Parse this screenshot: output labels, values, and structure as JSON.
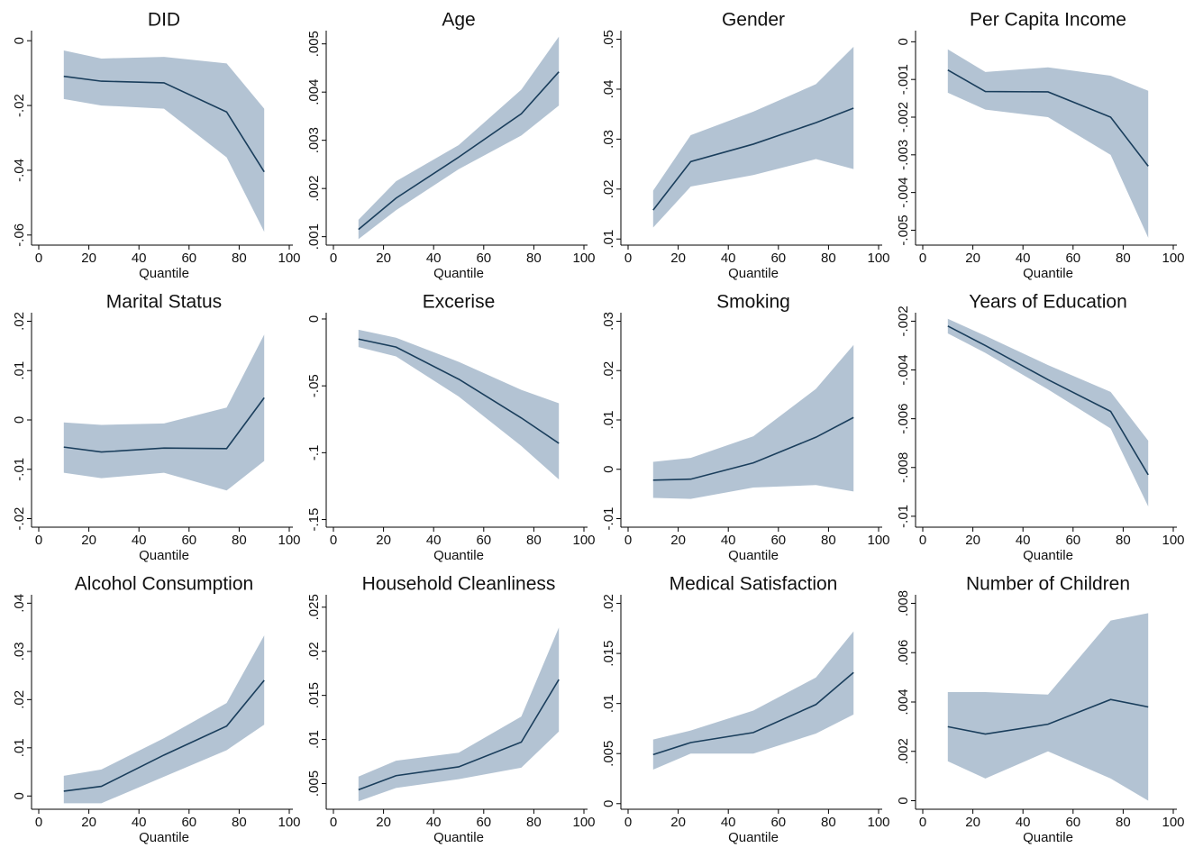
{
  "chart_data": [
    {
      "type": "line",
      "title": "DID",
      "x_label": "Quantile",
      "x": [
        10,
        25,
        50,
        75,
        90
      ],
      "values": [
        -0.011,
        -0.0125,
        -0.013,
        -0.022,
        -0.0405
      ],
      "lower": [
        -0.018,
        -0.02,
        -0.021,
        -0.036,
        -0.059
      ],
      "upper": [
        -0.003,
        -0.0055,
        -0.005,
        -0.007,
        -0.021
      ],
      "color": "#1a3e5c",
      "band_color": "#b3c3d3",
      "xlim": [
        0,
        100
      ],
      "xticks": [
        0,
        20,
        40,
        60,
        80,
        100
      ],
      "ylim": [
        -0.062,
        0.002
      ],
      "yticks": [
        {
          "value": -0.06,
          "label": "-.06"
        },
        {
          "value": -0.04,
          "label": "-.04"
        },
        {
          "value": -0.02,
          "label": "-.02"
        },
        0
      ]
    },
    {
      "type": "line",
      "title": "Age",
      "x_label": "Quantile",
      "x": [
        10,
        25,
        50,
        75,
        90
      ],
      "values": [
        0.00115,
        0.0018,
        0.00265,
        0.00355,
        0.00442
      ],
      "lower": [
        0.00095,
        0.00155,
        0.0024,
        0.0031,
        0.00372
      ],
      "upper": [
        0.00135,
        0.00215,
        0.0029,
        0.00405,
        0.00515
      ],
      "color": "#1a3e5c",
      "band_color": "#b3c3d3",
      "xlim": [
        0,
        100
      ],
      "xticks": [
        0,
        20,
        40,
        60,
        80,
        100
      ],
      "ylim": [
        0.0009,
        0.0052
      ],
      "yticks": [
        {
          "value": 0.001,
          "label": ".001"
        },
        {
          "value": 0.002,
          "label": ".002"
        },
        {
          "value": 0.003,
          "label": ".003"
        },
        {
          "value": 0.004,
          "label": ".004"
        },
        {
          "value": 0.005,
          "label": ".005"
        }
      ]
    },
    {
      "type": "line",
      "title": "Gender",
      "x_label": "Quantile",
      "x": [
        10,
        25,
        50,
        75,
        90
      ],
      "values": [
        0.0158,
        0.0255,
        0.029,
        0.0333,
        0.0362
      ],
      "lower": [
        0.0123,
        0.0205,
        0.0228,
        0.026,
        0.024
      ],
      "upper": [
        0.0197,
        0.0308,
        0.0355,
        0.041,
        0.0485
      ],
      "color": "#1a3e5c",
      "band_color": "#b3c3d3",
      "xlim": [
        0,
        100
      ],
      "xticks": [
        0,
        20,
        40,
        60,
        80,
        100
      ],
      "ylim": [
        0.0095,
        0.051
      ],
      "yticks": [
        {
          "value": 0.01,
          "label": ".01"
        },
        {
          "value": 0.02,
          "label": ".02"
        },
        {
          "value": 0.03,
          "label": ".03"
        },
        {
          "value": 0.04,
          "label": ".04"
        },
        {
          "value": 0.05,
          "label": ".05"
        }
      ]
    },
    {
      "type": "line",
      "title": "Per Capita Income",
      "x_label": "Quantile",
      "x": [
        10,
        25,
        50,
        75,
        90
      ],
      "values": [
        -0.00075,
        -0.00132,
        -0.00133,
        -0.002,
        -0.0033
      ],
      "lower": [
        -0.00135,
        -0.0018,
        -0.002,
        -0.003,
        -0.0052
      ],
      "upper": [
        -0.0002,
        -0.0008,
        -0.00068,
        -0.0009,
        -0.0013
      ],
      "color": "#1a3e5c",
      "band_color": "#b3c3d3",
      "xlim": [
        0,
        100
      ],
      "xticks": [
        0,
        20,
        40,
        60,
        80,
        100
      ],
      "ylim": [
        -0.0053,
        0.0002
      ],
      "yticks": [
        {
          "value": -0.005,
          "label": "-.005"
        },
        {
          "value": -0.004,
          "label": "-.004"
        },
        {
          "value": -0.003,
          "label": "-.003"
        },
        {
          "value": -0.002,
          "label": "-.002"
        },
        {
          "value": -0.001,
          "label": "-.001"
        },
        0
      ]
    },
    {
      "type": "line",
      "title": "Marital Status",
      "x_label": "Quantile",
      "x": [
        10,
        25,
        50,
        75,
        90
      ],
      "values": [
        -0.0055,
        -0.0065,
        -0.0057,
        -0.0058,
        0.0045
      ],
      "lower": [
        -0.0107,
        -0.0118,
        -0.0107,
        -0.0143,
        -0.0083
      ],
      "upper": [
        -0.0005,
        -0.001,
        -0.0007,
        0.0025,
        0.0173
      ],
      "color": "#1a3e5c",
      "band_color": "#b3c3d3",
      "xlim": [
        0,
        100
      ],
      "xticks": [
        0,
        20,
        40,
        60,
        80,
        100
      ],
      "ylim": [
        -0.021,
        0.021
      ],
      "yticks": [
        {
          "value": -0.02,
          "label": "-.02"
        },
        {
          "value": -0.01,
          "label": "-.01"
        },
        0,
        {
          "value": 0.01,
          "label": ".01"
        },
        {
          "value": 0.02,
          "label": ".02"
        }
      ]
    },
    {
      "type": "line",
      "title": "Excerise",
      "x_label": "Quantile",
      "x": [
        10,
        25,
        50,
        75,
        90
      ],
      "values": [
        -0.015,
        -0.021,
        -0.045,
        -0.074,
        -0.093
      ],
      "lower": [
        -0.021,
        -0.028,
        -0.058,
        -0.095,
        -0.12
      ],
      "upper": [
        -0.008,
        -0.014,
        -0.032,
        -0.053,
        -0.063
      ],
      "color": "#1a3e5c",
      "band_color": "#b3c3d3",
      "xlim": [
        0,
        100
      ],
      "xticks": [
        0,
        20,
        40,
        60,
        80,
        100
      ],
      "ylim": [
        -0.153,
        0.002
      ],
      "yticks": [
        {
          "value": -0.15,
          "label": "-.15"
        },
        {
          "value": -0.1,
          "label": "-.1"
        },
        {
          "value": -0.05,
          "label": "-.05"
        },
        0
      ]
    },
    {
      "type": "line",
      "title": "Smoking",
      "x_label": "Quantile",
      "x": [
        10,
        25,
        50,
        75,
        90
      ],
      "values": [
        -0.0022,
        -0.002,
        0.0013,
        0.0065,
        0.0105
      ],
      "lower": [
        -0.0058,
        -0.006,
        -0.0037,
        -0.0032,
        -0.0045
      ],
      "upper": [
        0.0015,
        0.0023,
        0.0067,
        0.0163,
        0.0252
      ],
      "color": "#1a3e5c",
      "band_color": "#b3c3d3",
      "xlim": [
        0,
        100
      ],
      "xticks": [
        0,
        20,
        40,
        60,
        80,
        100
      ],
      "ylim": [
        -0.011,
        0.031
      ],
      "yticks": [
        {
          "value": -0.01,
          "label": "-.01"
        },
        0,
        {
          "value": 0.01,
          "label": ".01"
        },
        {
          "value": 0.02,
          "label": ".02"
        },
        {
          "value": 0.03,
          "label": ".03"
        }
      ]
    },
    {
      "type": "line",
      "title": "Years of Education",
      "x_label": "Quantile",
      "x": [
        10,
        25,
        50,
        75,
        90
      ],
      "values": [
        -0.0022,
        -0.003,
        -0.0044,
        -0.0057,
        -0.0083
      ],
      "lower": [
        -0.0025,
        -0.0033,
        -0.0048,
        -0.0064,
        -0.0096
      ],
      "upper": [
        -0.0019,
        -0.0026,
        -0.0038,
        -0.0049,
        -0.0069
      ],
      "color": "#1a3e5c",
      "band_color": "#b3c3d3",
      "xlim": [
        0,
        100
      ],
      "xticks": [
        0,
        20,
        40,
        60,
        80,
        100
      ],
      "ylim": [
        -0.0103,
        -0.0018
      ],
      "yticks": [
        {
          "value": -0.01,
          "label": "-.01"
        },
        {
          "value": -0.008,
          "label": "-.008"
        },
        {
          "value": -0.006,
          "label": "-.006"
        },
        {
          "value": -0.004,
          "label": "-.004"
        },
        {
          "value": -0.002,
          "label": "-.002"
        }
      ]
    },
    {
      "type": "line",
      "title": "Alcohol Consumption",
      "x_label": "Quantile",
      "x": [
        10,
        25,
        50,
        75,
        90
      ],
      "values": [
        0.001,
        0.002,
        0.0085,
        0.0145,
        0.024
      ],
      "lower": [
        -0.0015,
        -0.0015,
        0.004,
        0.0095,
        0.0148
      ],
      "upper": [
        0.0042,
        0.0055,
        0.012,
        0.0193,
        0.0333
      ],
      "color": "#1a3e5c",
      "band_color": "#b3c3d3",
      "xlim": [
        0,
        100
      ],
      "xticks": [
        0,
        20,
        40,
        60,
        80,
        100
      ],
      "ylim": [
        -0.002,
        0.041
      ],
      "yticks": [
        0,
        {
          "value": 0.01,
          "label": ".01"
        },
        {
          "value": 0.02,
          "label": ".02"
        },
        {
          "value": 0.03,
          "label": ".03"
        },
        {
          "value": 0.04,
          "label": ".04"
        }
      ]
    },
    {
      "type": "line",
      "title": "Household Cleanliness",
      "x_label": "Quantile",
      "x": [
        10,
        25,
        50,
        75,
        90
      ],
      "values": [
        0.0043,
        0.0059,
        0.0069,
        0.0097,
        0.0168
      ],
      "lower": [
        0.003,
        0.0045,
        0.0055,
        0.0068,
        0.0109
      ],
      "upper": [
        0.0058,
        0.0076,
        0.0085,
        0.0126,
        0.0227
      ],
      "color": "#1a3e5c",
      "band_color": "#b3c3d3",
      "xlim": [
        0,
        100
      ],
      "xticks": [
        0,
        20,
        40,
        60,
        80,
        100
      ],
      "ylim": [
        0.0025,
        0.026
      ],
      "yticks": [
        {
          "value": 0.005,
          "label": ".005"
        },
        {
          "value": 0.01,
          "label": ".01"
        },
        {
          "value": 0.015,
          "label": ".015"
        },
        {
          "value": 0.02,
          "label": ".02"
        },
        {
          "value": 0.025,
          "label": ".025"
        }
      ]
    },
    {
      "type": "line",
      "title": "Medical Satisfaction",
      "x_label": "Quantile",
      "x": [
        10,
        25,
        50,
        75,
        90
      ],
      "values": [
        0.0049,
        0.0061,
        0.0071,
        0.0099,
        0.0131
      ],
      "lower": [
        0.0034,
        0.005,
        0.005,
        0.007,
        0.0089
      ],
      "upper": [
        0.0064,
        0.0073,
        0.0093,
        0.0126,
        0.0172
      ],
      "color": "#1a3e5c",
      "band_color": "#b3c3d3",
      "xlim": [
        0,
        100
      ],
      "xticks": [
        0,
        20,
        40,
        60,
        80,
        100
      ],
      "ylim": [
        -0.0002,
        0.0205
      ],
      "yticks": [
        0,
        {
          "value": 0.005,
          "label": ".005"
        },
        {
          "value": 0.01,
          "label": ".01"
        },
        {
          "value": 0.015,
          "label": ".015"
        },
        {
          "value": 0.02,
          "label": ".02"
        }
      ]
    },
    {
      "type": "line",
      "title": "Number of Children",
      "x_label": "Quantile",
      "x": [
        10,
        25,
        50,
        75,
        90
      ],
      "values": [
        0.003,
        0.0027,
        0.0031,
        0.0041,
        0.0038
      ],
      "lower": [
        0.0016,
        0.0009,
        0.002,
        0.0009,
        0
      ],
      "upper": [
        0.0044,
        0.0044,
        0.0043,
        0.0073,
        0.0076
      ],
      "color": "#1a3e5c",
      "band_color": "#b3c3d3",
      "xlim": [
        0,
        100
      ],
      "xticks": [
        0,
        20,
        40,
        60,
        80,
        100
      ],
      "ylim": [
        -0.0002,
        0.0082
      ],
      "yticks": [
        0,
        {
          "value": 0.002,
          "label": ".002"
        },
        {
          "value": 0.004,
          "label": ".004"
        },
        {
          "value": 0.006,
          "label": ".006"
        },
        {
          "value": 0.008,
          "label": ".008"
        }
      ]
    }
  ]
}
